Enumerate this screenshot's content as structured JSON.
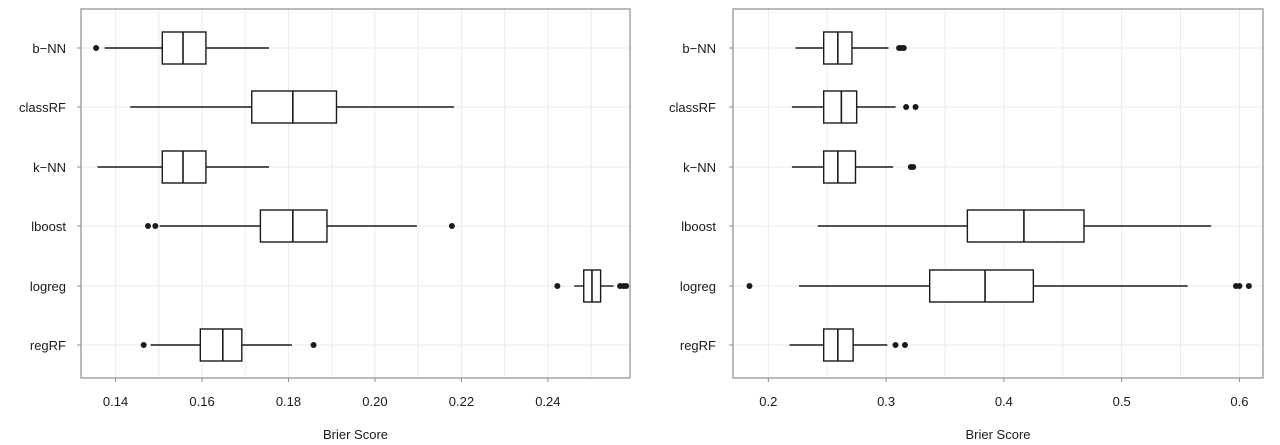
{
  "chart_data": [
    {
      "type": "boxplot",
      "orientation": "horizontal",
      "xlabel": "Brier Score",
      "xlim": [
        0.132,
        0.259
      ],
      "xticks": [
        "0.14",
        "0.16",
        "0.18",
        "0.20",
        "0.22",
        "0.24"
      ],
      "xtick_values": [
        0.14,
        0.16,
        0.18,
        0.2,
        0.22,
        0.24
      ],
      "grid": true,
      "categories": [
        "b−NN",
        "classRF",
        "k−NN",
        "lboost",
        "logreg",
        "regRF"
      ],
      "boxes": [
        {
          "label": "b−NN",
          "whisker_low": 0.1375,
          "q1": 0.1508,
          "median": 0.1556,
          "q3": 0.1609,
          "whisker_high": 0.1755,
          "outliers": [
            0.1355
          ]
        },
        {
          "label": "classRF",
          "whisker_low": 0.1434,
          "q1": 0.1715,
          "median": 0.181,
          "q3": 0.1911,
          "whisker_high": 0.2183,
          "outliers": []
        },
        {
          "label": "k−NN",
          "whisker_low": 0.1358,
          "q1": 0.1508,
          "median": 0.1556,
          "q3": 0.1609,
          "whisker_high": 0.1755,
          "outliers": []
        },
        {
          "label": "lboost",
          "whisker_low": 0.1502,
          "q1": 0.1735,
          "median": 0.181,
          "q3": 0.1889,
          "whisker_high": 0.2097,
          "outliers": [
            0.1475,
            0.1492,
            0.2178
          ]
        },
        {
          "label": "logreg",
          "whisker_low": 0.2461,
          "q1": 0.2483,
          "median": 0.2502,
          "q3": 0.2522,
          "whisker_high": 0.2552,
          "outliers": [
            0.2422,
            0.2567,
            0.2575,
            0.2581
          ]
        },
        {
          "label": "regRF",
          "whisker_low": 0.1481,
          "q1": 0.1596,
          "median": 0.1648,
          "q3": 0.1692,
          "whisker_high": 0.1808,
          "outliers": [
            0.1465,
            0.1858
          ]
        }
      ]
    },
    {
      "type": "boxplot",
      "orientation": "horizontal",
      "xlabel": "Brier Score",
      "xlim": [
        0.17,
        0.62
      ],
      "xticks": [
        "0.2",
        "0.3",
        "0.4",
        "0.5",
        "0.6"
      ],
      "xtick_values": [
        0.2,
        0.3,
        0.4,
        0.5,
        0.6
      ],
      "grid": true,
      "categories": [
        "b−NN",
        "classRF",
        "k−NN",
        "lboost",
        "logreg",
        "regRF"
      ],
      "boxes": [
        {
          "label": "b−NN",
          "whisker_low": 0.223,
          "q1": 0.247,
          "median": 0.259,
          "q3": 0.271,
          "whisker_high": 0.302,
          "outliers": [
            0.311,
            0.313,
            0.315
          ]
        },
        {
          "label": "classRF",
          "whisker_low": 0.22,
          "q1": 0.247,
          "median": 0.262,
          "q3": 0.275,
          "whisker_high": 0.308,
          "outliers": [
            0.317,
            0.325
          ]
        },
        {
          "label": "k−NN",
          "whisker_low": 0.22,
          "q1": 0.247,
          "median": 0.259,
          "q3": 0.274,
          "whisker_high": 0.306,
          "outliers": [
            0.321,
            0.323
          ]
        },
        {
          "label": "lboost",
          "whisker_low": 0.242,
          "q1": 0.369,
          "median": 0.417,
          "q3": 0.468,
          "whisker_high": 0.576,
          "outliers": []
        },
        {
          "label": "logreg",
          "whisker_low": 0.226,
          "q1": 0.337,
          "median": 0.384,
          "q3": 0.425,
          "whisker_high": 0.556,
          "outliers": [
            0.184,
            0.597,
            0.6,
            0.608
          ]
        },
        {
          "label": "regRF",
          "whisker_low": 0.218,
          "q1": 0.247,
          "median": 0.259,
          "q3": 0.272,
          "whisker_high": 0.301,
          "outliers": [
            0.308,
            0.316
          ]
        }
      ]
    }
  ],
  "colors": {
    "panel_border": "#8c8c8c",
    "grid": "#ebebeb",
    "box_stroke": "#1a1a1a",
    "text": "#1a1a1a",
    "tick": "#8c8c8c"
  }
}
